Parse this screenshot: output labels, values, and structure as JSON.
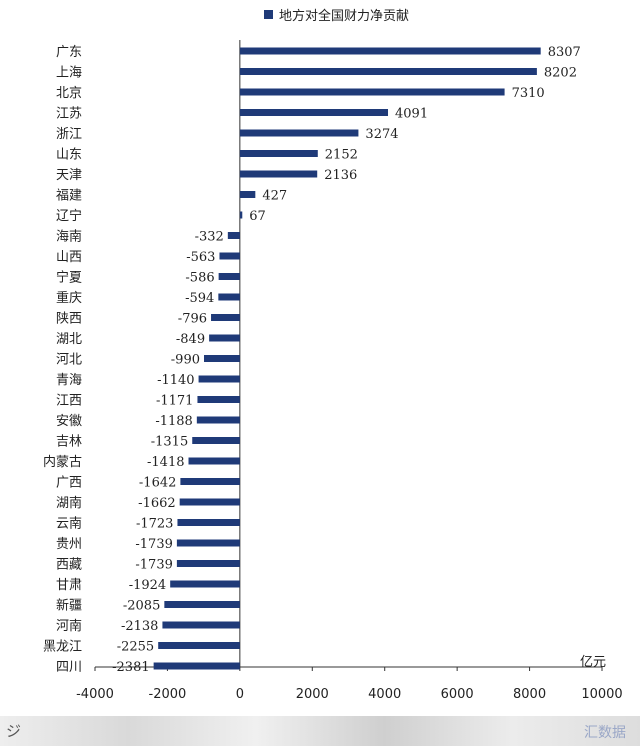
{
  "chart_data": {
    "type": "bar",
    "orientation": "horizontal",
    "legend_label": "地方对全国财力净贡献",
    "unit_label": "亿元",
    "categories": [
      "广东",
      "上海",
      "北京",
      "江苏",
      "浙江",
      "山东",
      "天津",
      "福建",
      "辽宁",
      "海南",
      "山西",
      "宁夏",
      "重庆",
      "陕西",
      "湖北",
      "河北",
      "青海",
      "江西",
      "安徽",
      "吉林",
      "内蒙古",
      "广西",
      "湖南",
      "云南",
      "贵州",
      "西藏",
      "甘肃",
      "新疆",
      "河南",
      "黑龙江",
      "四川"
    ],
    "values": [
      8307,
      8202,
      7310,
      4091,
      3274,
      2152,
      2136,
      427,
      67,
      -332,
      -563,
      -586,
      -594,
      -796,
      -849,
      -990,
      -1140,
      -1171,
      -1188,
      -1315,
      -1418,
      -1642,
      -1662,
      -1723,
      -1739,
      -1739,
      -1924,
      -2085,
      -2138,
      -2255,
      -2381
    ],
    "value_labels": [
      "8307",
      "8202",
      "7310",
      "4091",
      "3274",
      "2152",
      "2136",
      "427",
      "67",
      "-332",
      "-563",
      "-586",
      "-594",
      "-796",
      "-849",
      "-990",
      "-1140",
      "-1171",
      "-1188",
      "-1315",
      "-1418",
      "-1642",
      "-1662",
      "-1723",
      "-1739",
      "-1739",
      "-1924",
      "-2085",
      "-2138",
      "-2255",
      "-2381"
    ],
    "xlim": [
      -4000,
      10000
    ],
    "xticks": [
      -4000,
      -2000,
      0,
      2000,
      4000,
      6000,
      8000,
      10000
    ],
    "xtick_labels": [
      "-4000",
      "-2000",
      "0",
      "2000",
      "4000",
      "6000",
      "8000",
      "10000"
    ],
    "bar_color": "#1f3a78",
    "legend_position": "top"
  },
  "footer": {
    "mark": "ジ",
    "brand": "汇数据"
  }
}
